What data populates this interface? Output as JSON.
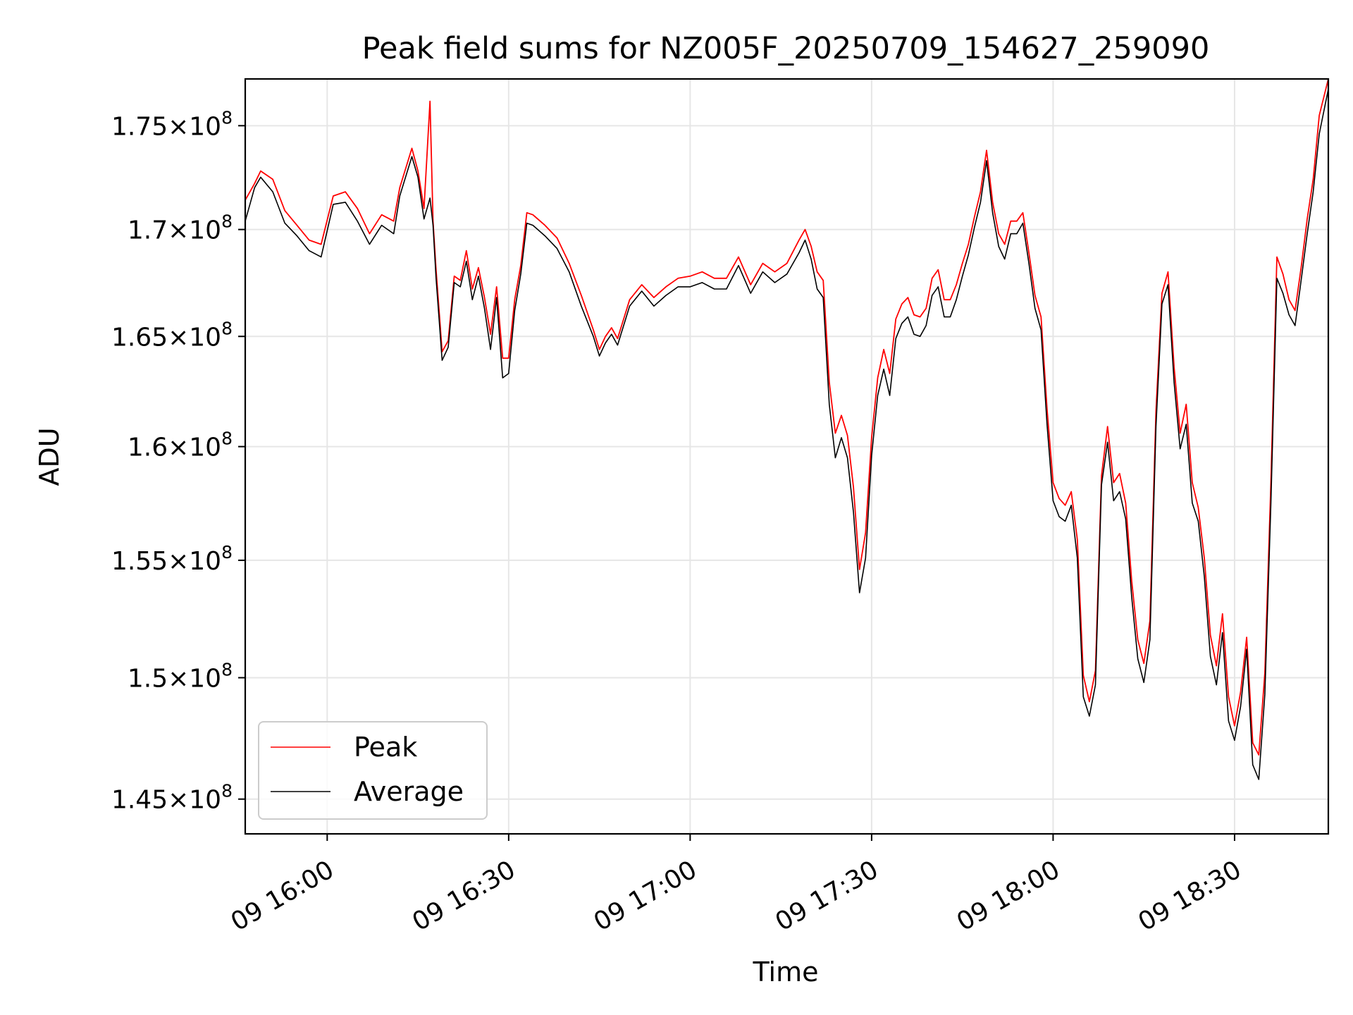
{
  "chart_data": {
    "type": "line",
    "title": "Peak field sums for NZ005F_20250709_154627_259090",
    "xlabel": "Time",
    "ylabel": "ADU",
    "xlim": [
      "2025-07-09 15:46:27",
      "2025-07-09 18:45:30"
    ],
    "ylim": [
      143600000,
      177300000
    ],
    "y_scale": "log",
    "grid": true,
    "legend_position": "lower-left",
    "x_ticks": [
      {
        "t": "2025-07-09 16:00",
        "label": "09 16:00"
      },
      {
        "t": "2025-07-09 16:30",
        "label": "09 16:30"
      },
      {
        "t": "2025-07-09 17:00",
        "label": "09 17:00"
      },
      {
        "t": "2025-07-09 17:30",
        "label": "09 17:30"
      },
      {
        "t": "2025-07-09 18:00",
        "label": "09 18:00"
      },
      {
        "t": "2025-07-09 18:30",
        "label": "09 18:30"
      }
    ],
    "y_ticks": [
      {
        "value": 145000000,
        "mantissa": "1.45",
        "exponent": "8"
      },
      {
        "value": 150000000,
        "mantissa": "1.5",
        "exponent": "8"
      },
      {
        "value": 155000000,
        "mantissa": "1.55",
        "exponent": "8"
      },
      {
        "value": 160000000,
        "mantissa": "1.6",
        "exponent": "8"
      },
      {
        "value": 165000000,
        "mantissa": "1.65",
        "exponent": "8"
      },
      {
        "value": 170000000,
        "mantissa": "1.7",
        "exponent": "8"
      },
      {
        "value": 175000000,
        "mantissa": "1.75",
        "exponent": "8"
      }
    ],
    "series": [
      {
        "name": "Peak",
        "color": "#ff0000",
        "x": [
          "2025-07-09 15:46:27",
          "2025-07-09 15:48",
          "2025-07-09 15:49",
          "2025-07-09 15:51",
          "2025-07-09 15:53",
          "2025-07-09 15:55",
          "2025-07-09 15:57",
          "2025-07-09 15:59",
          "2025-07-09 16:01",
          "2025-07-09 16:03",
          "2025-07-09 16:05",
          "2025-07-09 16:07",
          "2025-07-09 16:09",
          "2025-07-09 16:11",
          "2025-07-09 16:12",
          "2025-07-09 16:14",
          "2025-07-09 16:15",
          "2025-07-09 16:16",
          "2025-07-09 16:17",
          "2025-07-09 16:17:30",
          "2025-07-09 16:18",
          "2025-07-09 16:18:30",
          "2025-07-09 16:19",
          "2025-07-09 16:20",
          "2025-07-09 16:21",
          "2025-07-09 16:22",
          "2025-07-09 16:23",
          "2025-07-09 16:24",
          "2025-07-09 16:25",
          "2025-07-09 16:26",
          "2025-07-09 16:27",
          "2025-07-09 16:28",
          "2025-07-09 16:29",
          "2025-07-09 16:30",
          "2025-07-09 16:31",
          "2025-07-09 16:32",
          "2025-07-09 16:33",
          "2025-07-09 16:34",
          "2025-07-09 16:36",
          "2025-07-09 16:38",
          "2025-07-09 16:40",
          "2025-07-09 16:42",
          "2025-07-09 16:44",
          "2025-07-09 16:45",
          "2025-07-09 16:46",
          "2025-07-09 16:47",
          "2025-07-09 16:48",
          "2025-07-09 16:50",
          "2025-07-09 16:52",
          "2025-07-09 16:54",
          "2025-07-09 16:56",
          "2025-07-09 16:58",
          "2025-07-09 17:00",
          "2025-07-09 17:02",
          "2025-07-09 17:04",
          "2025-07-09 17:06",
          "2025-07-09 17:08",
          "2025-07-09 17:10",
          "2025-07-09 17:12",
          "2025-07-09 17:14",
          "2025-07-09 17:16",
          "2025-07-09 17:18",
          "2025-07-09 17:19",
          "2025-07-09 17:20",
          "2025-07-09 17:21",
          "2025-07-09 17:22",
          "2025-07-09 17:23",
          "2025-07-09 17:24",
          "2025-07-09 17:25",
          "2025-07-09 17:26",
          "2025-07-09 17:27",
          "2025-07-09 17:28",
          "2025-07-09 17:29",
          "2025-07-09 17:30",
          "2025-07-09 17:31",
          "2025-07-09 17:32",
          "2025-07-09 17:33",
          "2025-07-09 17:34",
          "2025-07-09 17:35",
          "2025-07-09 17:36",
          "2025-07-09 17:37",
          "2025-07-09 17:38",
          "2025-07-09 17:39",
          "2025-07-09 17:40",
          "2025-07-09 17:41",
          "2025-07-09 17:42",
          "2025-07-09 17:43",
          "2025-07-09 17:44",
          "2025-07-09 17:45",
          "2025-07-09 17:46",
          "2025-07-09 17:47",
          "2025-07-09 17:48",
          "2025-07-09 17:49",
          "2025-07-09 17:50",
          "2025-07-09 17:51",
          "2025-07-09 17:52",
          "2025-07-09 17:53",
          "2025-07-09 17:54",
          "2025-07-09 17:55",
          "2025-07-09 17:56",
          "2025-07-09 17:57",
          "2025-07-09 17:58",
          "2025-07-09 17:59",
          "2025-07-09 18:00",
          "2025-07-09 18:01",
          "2025-07-09 18:02",
          "2025-07-09 18:03",
          "2025-07-09 18:04",
          "2025-07-09 18:05",
          "2025-07-09 18:06",
          "2025-07-09 18:07",
          "2025-07-09 18:08",
          "2025-07-09 18:09",
          "2025-07-09 18:10",
          "2025-07-09 18:11",
          "2025-07-09 18:12",
          "2025-07-09 18:13",
          "2025-07-09 18:14",
          "2025-07-09 18:15",
          "2025-07-09 18:16",
          "2025-07-09 18:17",
          "2025-07-09 18:18",
          "2025-07-09 18:19",
          "2025-07-09 18:20",
          "2025-07-09 18:21",
          "2025-07-09 18:22",
          "2025-07-09 18:23",
          "2025-07-09 18:24",
          "2025-07-09 18:25",
          "2025-07-09 18:26",
          "2025-07-09 18:27",
          "2025-07-09 18:28",
          "2025-07-09 18:29",
          "2025-07-09 18:30",
          "2025-07-09 18:31",
          "2025-07-09 18:32",
          "2025-07-09 18:33",
          "2025-07-09 18:34",
          "2025-07-09 18:35",
          "2025-07-09 18:36",
          "2025-07-09 18:37",
          "2025-07-09 18:38",
          "2025-07-09 18:39",
          "2025-07-09 18:40",
          "2025-07-09 18:41",
          "2025-07-09 18:42",
          "2025-07-09 18:43",
          "2025-07-09 18:44",
          "2025-07-09 18:45:30"
        ],
        "values": [
          171400000,
          172200000,
          172800000,
          172400000,
          170900000,
          170200000,
          169500000,
          169300000,
          171600000,
          171800000,
          171000000,
          169800000,
          170700000,
          170400000,
          172000000,
          173900000,
          172800000,
          171000000,
          176200000,
          170400000,
          168100000,
          166200000,
          164300000,
          164800000,
          167800000,
          167600000,
          169000000,
          167200000,
          168200000,
          166800000,
          165100000,
          167300000,
          164000000,
          164000000,
          166700000,
          168300000,
          170800000,
          170700000,
          170200000,
          169600000,
          168400000,
          166900000,
          165300000,
          164400000,
          165000000,
          165400000,
          164900000,
          166700000,
          167400000,
          166800000,
          167300000,
          167700000,
          167800000,
          168000000,
          167700000,
          167700000,
          168700000,
          167400000,
          168400000,
          168000000,
          168400000,
          169500000,
          170000000,
          169200000,
          168000000,
          167600000,
          162900000,
          160600000,
          161400000,
          160500000,
          158200000,
          154600000,
          156200000,
          160400000,
          163100000,
          164400000,
          163300000,
          165800000,
          166500000,
          166800000,
          166000000,
          165900000,
          166300000,
          167700000,
          168100000,
          166700000,
          166700000,
          167400000,
          168400000,
          169300000,
          170600000,
          171800000,
          173800000,
          171300000,
          169800000,
          169300000,
          170400000,
          170400000,
          170800000,
          168900000,
          166900000,
          165900000,
          161700000,
          158400000,
          157700000,
          157400000,
          158000000,
          155900000,
          150100000,
          149000000,
          150300000,
          158700000,
          160900000,
          158400000,
          158800000,
          157500000,
          154100000,
          151600000,
          150600000,
          152400000,
          161600000,
          167000000,
          168000000,
          163600000,
          160600000,
          161900000,
          158400000,
          157300000,
          155100000,
          151800000,
          150500000,
          152700000,
          149200000,
          148000000,
          149400000,
          151700000,
          147300000,
          146800000,
          150200000,
          158400000,
          168700000,
          167900000,
          166700000,
          166200000,
          168200000,
          170500000,
          172400000,
          175500000,
          177400000
        ]
      },
      {
        "name": "Average",
        "color": "#000000",
        "x": [
          "2025-07-09 15:46:27",
          "2025-07-09 15:48",
          "2025-07-09 15:49",
          "2025-07-09 15:51",
          "2025-07-09 15:53",
          "2025-07-09 15:55",
          "2025-07-09 15:57",
          "2025-07-09 15:59",
          "2025-07-09 16:01",
          "2025-07-09 16:03",
          "2025-07-09 16:05",
          "2025-07-09 16:07",
          "2025-07-09 16:09",
          "2025-07-09 16:11",
          "2025-07-09 16:12",
          "2025-07-09 16:14",
          "2025-07-09 16:15",
          "2025-07-09 16:16",
          "2025-07-09 16:17",
          "2025-07-09 16:17:30",
          "2025-07-09 16:18",
          "2025-07-09 16:18:30",
          "2025-07-09 16:19",
          "2025-07-09 16:20",
          "2025-07-09 16:21",
          "2025-07-09 16:22",
          "2025-07-09 16:23",
          "2025-07-09 16:24",
          "2025-07-09 16:25",
          "2025-07-09 16:26",
          "2025-07-09 16:27",
          "2025-07-09 16:28",
          "2025-07-09 16:29",
          "2025-07-09 16:30",
          "2025-07-09 16:31",
          "2025-07-09 16:32",
          "2025-07-09 16:33",
          "2025-07-09 16:34",
          "2025-07-09 16:36",
          "2025-07-09 16:38",
          "2025-07-09 16:40",
          "2025-07-09 16:42",
          "2025-07-09 16:44",
          "2025-07-09 16:45",
          "2025-07-09 16:46",
          "2025-07-09 16:47",
          "2025-07-09 16:48",
          "2025-07-09 16:50",
          "2025-07-09 16:52",
          "2025-07-09 16:54",
          "2025-07-09 16:56",
          "2025-07-09 16:58",
          "2025-07-09 17:00",
          "2025-07-09 17:02",
          "2025-07-09 17:04",
          "2025-07-09 17:06",
          "2025-07-09 17:08",
          "2025-07-09 17:10",
          "2025-07-09 17:12",
          "2025-07-09 17:14",
          "2025-07-09 17:16",
          "2025-07-09 17:18",
          "2025-07-09 17:19",
          "2025-07-09 17:20",
          "2025-07-09 17:21",
          "2025-07-09 17:22",
          "2025-07-09 17:23",
          "2025-07-09 17:24",
          "2025-07-09 17:25",
          "2025-07-09 17:26",
          "2025-07-09 17:27",
          "2025-07-09 17:28",
          "2025-07-09 17:29",
          "2025-07-09 17:30",
          "2025-07-09 17:31",
          "2025-07-09 17:32",
          "2025-07-09 17:33",
          "2025-07-09 17:34",
          "2025-07-09 17:35",
          "2025-07-09 17:36",
          "2025-07-09 17:37",
          "2025-07-09 17:38",
          "2025-07-09 17:39",
          "2025-07-09 17:40",
          "2025-07-09 17:41",
          "2025-07-09 17:42",
          "2025-07-09 17:43",
          "2025-07-09 17:44",
          "2025-07-09 17:45",
          "2025-07-09 17:46",
          "2025-07-09 17:47",
          "2025-07-09 17:48",
          "2025-07-09 17:49",
          "2025-07-09 17:50",
          "2025-07-09 17:51",
          "2025-07-09 17:52",
          "2025-07-09 17:53",
          "2025-07-09 17:54",
          "2025-07-09 17:55",
          "2025-07-09 17:56",
          "2025-07-09 17:57",
          "2025-07-09 17:58",
          "2025-07-09 17:59",
          "2025-07-09 18:00",
          "2025-07-09 18:01",
          "2025-07-09 18:02",
          "2025-07-09 18:03",
          "2025-07-09 18:04",
          "2025-07-09 18:05",
          "2025-07-09 18:06",
          "2025-07-09 18:07",
          "2025-07-09 18:08",
          "2025-07-09 18:09",
          "2025-07-09 18:10",
          "2025-07-09 18:11",
          "2025-07-09 18:12",
          "2025-07-09 18:13",
          "2025-07-09 18:14",
          "2025-07-09 18:15",
          "2025-07-09 18:16",
          "2025-07-09 18:17",
          "2025-07-09 18:18",
          "2025-07-09 18:19",
          "2025-07-09 18:20",
          "2025-07-09 18:21",
          "2025-07-09 18:22",
          "2025-07-09 18:23",
          "2025-07-09 18:24",
          "2025-07-09 18:25",
          "2025-07-09 18:26",
          "2025-07-09 18:27",
          "2025-07-09 18:28",
          "2025-07-09 18:29",
          "2025-07-09 18:30",
          "2025-07-09 18:31",
          "2025-07-09 18:32",
          "2025-07-09 18:33",
          "2025-07-09 18:34",
          "2025-07-09 18:35",
          "2025-07-09 18:36",
          "2025-07-09 18:37",
          "2025-07-09 18:38",
          "2025-07-09 18:39",
          "2025-07-09 18:40",
          "2025-07-09 18:41",
          "2025-07-09 18:42",
          "2025-07-09 18:43",
          "2025-07-09 18:44",
          "2025-07-09 18:45:30"
        ],
        "values": [
          170400000,
          172000000,
          172500000,
          171800000,
          170300000,
          169700000,
          169000000,
          168700000,
          171200000,
          171300000,
          170400000,
          169300000,
          170200000,
          169800000,
          171600000,
          173500000,
          172500000,
          170500000,
          171500000,
          170200000,
          167700000,
          165800000,
          163900000,
          164500000,
          167500000,
          167300000,
          168500000,
          166700000,
          167800000,
          166300000,
          164400000,
          166800000,
          163100000,
          163300000,
          166200000,
          167900000,
          170300000,
          170200000,
          169700000,
          169100000,
          168000000,
          166400000,
          165000000,
          164100000,
          164700000,
          165100000,
          164600000,
          166400000,
          167100000,
          166400000,
          166900000,
          167300000,
          167300000,
          167500000,
          167200000,
          167200000,
          168300000,
          167000000,
          168000000,
          167500000,
          167900000,
          168900000,
          169500000,
          168600000,
          167200000,
          166800000,
          161900000,
          159500000,
          160400000,
          159500000,
          157100000,
          153600000,
          155100000,
          159600000,
          162300000,
          163500000,
          162300000,
          164900000,
          165600000,
          165900000,
          165100000,
          165000000,
          165500000,
          166900000,
          167300000,
          165900000,
          165900000,
          166700000,
          167800000,
          168800000,
          170100000,
          171300000,
          173300000,
          170800000,
          169200000,
          168600000,
          169800000,
          169800000,
          170300000,
          168400000,
          166300000,
          165300000,
          161000000,
          157600000,
          156900000,
          156700000,
          157400000,
          155100000,
          149200000,
          148400000,
          149700000,
          158300000,
          160200000,
          157600000,
          158000000,
          156800000,
          153400000,
          150800000,
          149800000,
          151600000,
          160900000,
          166500000,
          167400000,
          162900000,
          159900000,
          161000000,
          157500000,
          156700000,
          154300000,
          150900000,
          149700000,
          151900000,
          148200000,
          147400000,
          148800000,
          151200000,
          146400000,
          145800000,
          149300000,
          157500000,
          167700000,
          167000000,
          166000000,
          165500000,
          167600000,
          169800000,
          171800000,
          174600000,
          176800000
        ]
      }
    ]
  }
}
